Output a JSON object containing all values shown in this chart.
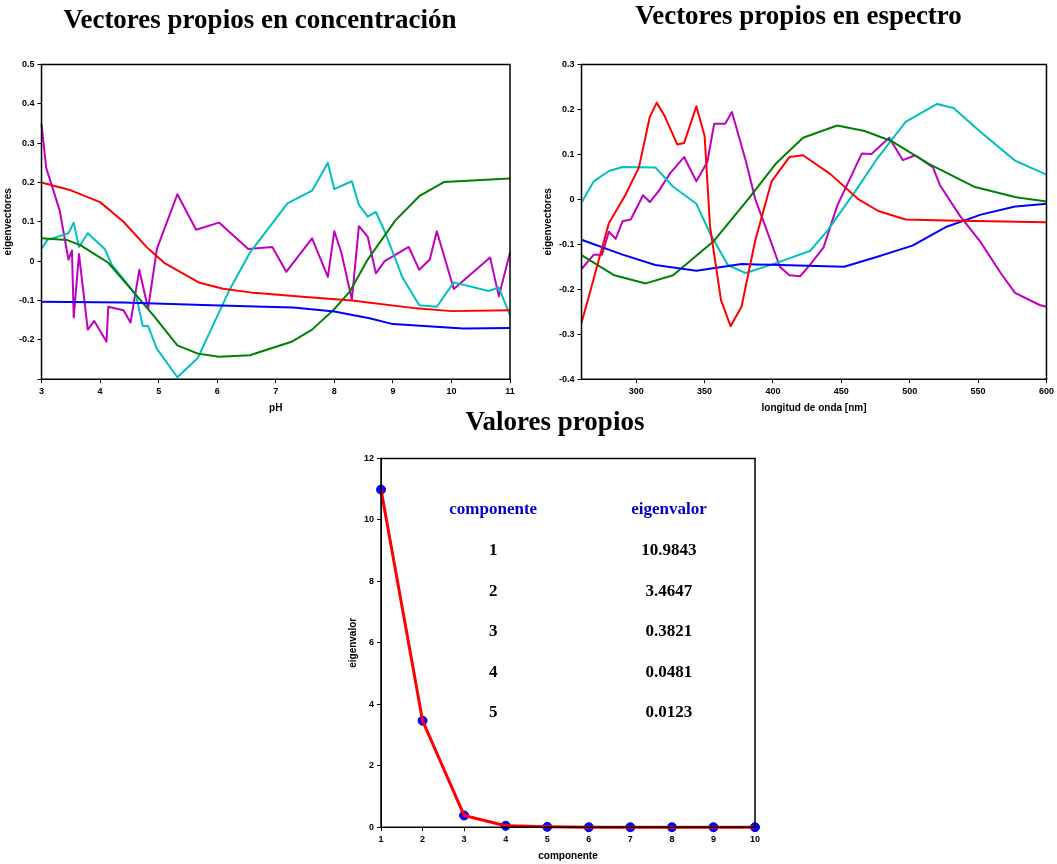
{
  "chart_data": [
    {
      "type": "line",
      "title": "Vectores propios en concentración",
      "xlabel": "pH",
      "ylabel": "eigenvectores",
      "xlim": [
        3,
        11
      ],
      "xticks": [
        3,
        4,
        5,
        6,
        7,
        8,
        9,
        10,
        11
      ],
      "ylim": [
        -0.3,
        0.5
      ],
      "yticks": [
        {
          "value": -0.3,
          "label": null
        },
        -0.2,
        -0.1,
        0,
        0.1,
        0.2,
        0.3,
        0.4,
        0.5
      ],
      "grid": false,
      "legend": false,
      "marker": "none",
      "series": [
        {
          "color": "#ff0000",
          "x": [
            3,
            3.5,
            4,
            4.4,
            4.8,
            5.1,
            5.7,
            6.1,
            6.6,
            7.4,
            8.3,
            9.4,
            10,
            11
          ],
          "values": [
            0.2,
            0.18,
            0.15,
            0.1,
            0.035,
            -0.005,
            -0.055,
            -0.07,
            -0.08,
            -0.09,
            -0.1,
            -0.12,
            -0.127,
            -0.125
          ]
        },
        {
          "color": "#0000ff",
          "x": [
            3,
            4.4,
            5.9,
            7.3,
            8,
            8.6,
            9,
            10.2,
            11
          ],
          "values": [
            -0.103,
            -0.105,
            -0.112,
            -0.118,
            -0.128,
            -0.145,
            -0.16,
            -0.171,
            -0.17
          ]
        },
        {
          "color": "#008000",
          "x": [
            3,
            3.43,
            3.67,
            4.14,
            4.61,
            4.91,
            5.32,
            5.67,
            6.03,
            6.56,
            7.27,
            7.62,
            7.98,
            8.27,
            8.57,
            9.04,
            9.45,
            9.87,
            11
          ],
          "values": [
            0.058,
            0.054,
            0.04,
            -0.004,
            -0.085,
            -0.138,
            -0.214,
            -0.235,
            -0.243,
            -0.239,
            -0.205,
            -0.174,
            -0.125,
            -0.076,
            0.004,
            0.103,
            0.165,
            0.201,
            0.21
          ]
        },
        {
          "color": "#00c0c0",
          "x": [
            3,
            3.1,
            3.46,
            3.55,
            3.64,
            3.79,
            4.08,
            4.2,
            4.61,
            4.73,
            4.82,
            4.97,
            5.32,
            5.67,
            6.2,
            6.56,
            7.2,
            7.62,
            7.89,
            8,
            8.3,
            8.42,
            8.57,
            8.71,
            8.86,
            9.16,
            9.45,
            9.75,
            10.04,
            10.63,
            10.81,
            11
          ],
          "values": [
            0.031,
            0.054,
            0.071,
            0.098,
            0.036,
            0.071,
            0.031,
            -0.009,
            -0.085,
            -0.165,
            -0.165,
            -0.223,
            -0.295,
            -0.246,
            -0.076,
            0.022,
            0.147,
            0.179,
            0.25,
            0.183,
            0.203,
            0.143,
            0.113,
            0.125,
            0.076,
            -0.04,
            -0.112,
            -0.116,
            -0.054,
            -0.076,
            -0.067,
            -0.138
          ]
        },
        {
          "color": "#c000c0",
          "x": [
            3,
            3.08,
            3.31,
            3.46,
            3.52,
            3.55,
            3.64,
            3.79,
            3.9,
            4.11,
            4.14,
            4.4,
            4.52,
            4.67,
            4.82,
            4.97,
            5.32,
            5.64,
            6.03,
            6.53,
            6.94,
            7.18,
            7.62,
            7.89,
            8,
            8.12,
            8.3,
            8.42,
            8.57,
            8.71,
            8.86,
            9.27,
            9.45,
            9.63,
            9.75,
            10.04,
            10.66,
            10.81,
            11
          ],
          "values": [
            0.348,
            0.237,
            0.129,
            0.004,
            0.027,
            -0.143,
            0.018,
            -0.174,
            -0.152,
            -0.205,
            -0.116,
            -0.125,
            -0.156,
            -0.022,
            -0.121,
            0.031,
            0.17,
            0.08,
            0.098,
            0.031,
            0.036,
            -0.027,
            0.058,
            -0.04,
            0.076,
            0.022,
            -0.098,
            0.089,
            0.062,
            -0.031,
            0,
            0.036,
            -0.022,
            0.004,
            0.076,
            -0.071,
            0.009,
            -0.089,
            0.022
          ]
        }
      ]
    },
    {
      "type": "line",
      "title": "Vectores propios en espectro",
      "xlabel": "longitud de onda [nm]",
      "ylabel": "eigenvectores",
      "xlim": [
        260,
        600
      ],
      "xticks": [
        300,
        350,
        400,
        450,
        500,
        550,
        600
      ],
      "ylim": [
        -0.4,
        0.3
      ],
      "yticks": [
        -0.4,
        -0.3,
        -0.2,
        -0.1,
        0,
        0.1,
        0.2,
        0.3
      ],
      "grid": false,
      "legend": false,
      "marker": "none",
      "series": [
        {
          "color": "#ff0000",
          "x": [
            260,
            264,
            280,
            292,
            302,
            310,
            315,
            321,
            330,
            335,
            344,
            350,
            354,
            362,
            369,
            377,
            387,
            399,
            412,
            422,
            442,
            462,
            477,
            497,
            527,
            600
          ],
          "values": [
            -0.274,
            -0.231,
            -0.053,
            0.009,
            0.071,
            0.184,
            0.215,
            0.184,
            0.122,
            0.125,
            0.207,
            0.141,
            -0.061,
            -0.224,
            -0.282,
            -0.239,
            -0.092,
            0.04,
            0.094,
            0.098,
            0.056,
            0.001,
            -0.026,
            -0.045,
            -0.047,
            -0.051
          ]
        },
        {
          "color": "#0000ff",
          "x": [
            260,
            290,
            314,
            344,
            377,
            452,
            477,
            502,
            527,
            552,
            577,
            600
          ],
          "values": [
            -0.09,
            -0.123,
            -0.146,
            -0.159,
            -0.144,
            -0.15,
            -0.127,
            -0.103,
            -0.061,
            -0.034,
            -0.016,
            -0.01
          ]
        },
        {
          "color": "#008000",
          "x": [
            260,
            284,
            307,
            327,
            357,
            382,
            402,
            422,
            447,
            467,
            487,
            514,
            547,
            577,
            600
          ],
          "values": [
            -0.124,
            -0.169,
            -0.187,
            -0.169,
            -0.092,
            0.001,
            0.079,
            0.137,
            0.164,
            0.152,
            0.129,
            0.079,
            0.028,
            0.005,
            -0.005
          ]
        },
        {
          "color": "#00c0c0",
          "x": [
            260,
            269,
            280,
            290,
            314,
            327,
            344,
            354,
            367,
            380,
            402,
            427,
            440,
            460,
            477,
            497,
            520,
            532,
            552,
            577,
            600
          ],
          "values": [
            -0.007,
            0.04,
            0.063,
            0.072,
            0.071,
            0.028,
            -0.01,
            -0.076,
            -0.146,
            -0.164,
            -0.142,
            -0.115,
            -0.069,
            0.017,
            0.094,
            0.172,
            0.212,
            0.203,
            0.149,
            0.086,
            0.055
          ]
        },
        {
          "color": "#c000c0",
          "x": [
            260,
            269,
            275,
            280,
            285,
            290,
            296,
            305,
            310,
            317,
            325,
            335,
            344,
            352,
            357,
            365,
            370,
            380,
            387,
            400,
            405,
            412,
            420,
            427,
            437,
            447,
            465,
            472,
            485,
            495,
            504,
            517,
            522,
            537,
            552,
            567,
            577,
            595,
            600
          ],
          "values": [
            -0.155,
            -0.123,
            -0.123,
            -0.072,
            -0.088,
            -0.049,
            -0.045,
            0.009,
            -0.006,
            0.021,
            0.059,
            0.094,
            0.04,
            0.083,
            0.168,
            0.168,
            0.194,
            0.087,
            0.001,
            -0.107,
            -0.15,
            -0.169,
            -0.171,
            -0.146,
            -0.107,
            -0.014,
            0.102,
            0.101,
            0.137,
            0.087,
            0.098,
            0.071,
            0.032,
            -0.038,
            -0.096,
            -0.166,
            -0.208,
            -0.235,
            -0.239
          ]
        }
      ]
    },
    {
      "type": "line",
      "title": "Valores propios",
      "xlabel": "componente",
      "ylabel": "eigenvalor",
      "x": [
        1,
        2,
        3,
        4,
        5,
        6,
        7,
        8,
        9,
        10
      ],
      "xlim": [
        1,
        10
      ],
      "xticks": [
        1,
        2,
        3,
        4,
        5,
        6,
        7,
        8,
        9,
        10
      ],
      "ylim": [
        0,
        12
      ],
      "yticks": [
        0,
        2,
        4,
        6,
        8,
        10,
        12
      ],
      "grid": false,
      "legend": false,
      "series": [
        {
          "type": "line",
          "color": "#ff0000",
          "marker": "none",
          "values": [
            10.9843,
            3.4647,
            0.3821,
            0.0481,
            0.0123,
            0,
            0,
            0,
            0,
            0
          ]
        },
        {
          "type": "scatter",
          "color": "#0000ff",
          "marker": "circle",
          "values": [
            10.9843,
            3.4647,
            0.3821,
            0.0481,
            0.0123,
            0,
            0,
            0,
            0,
            0
          ]
        }
      ],
      "annotations": [
        "componente",
        "eigenvalor",
        "1",
        "10.9843",
        "2",
        "3.4647",
        "3",
        "0.3821",
        "4",
        "0.0481",
        "5",
        "0.0123"
      ]
    }
  ]
}
